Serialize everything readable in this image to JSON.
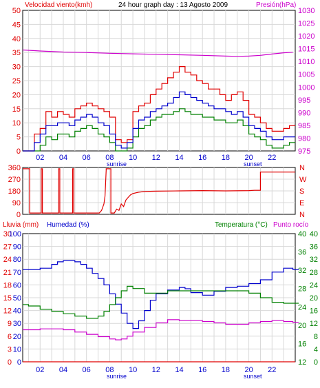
{
  "header": {
    "left_title": "Velocidad viento(kmh)",
    "center_title": "24 hour graph day : 13 Agosto 2009",
    "right_title": "Presión(hPa)"
  },
  "labels": {
    "sunrise": "sunrise",
    "sunset": "sunset"
  },
  "panel3_header": {
    "rain": "Lluvia (mm)",
    "humidity": "Humedad (%)",
    "temperature": "Temperatura (°C)",
    "dewpoint": "Punto rocío"
  },
  "colors": {
    "frame": "#000000",
    "grid": "#d8d8d8",
    "red": "#e00000",
    "blue": "#0000cc",
    "green": "#008000",
    "magenta": "#cc00cc",
    "white": "#ffffff"
  },
  "chart_data": [
    {
      "type": "line",
      "title": "24 hour graph day : 13 Agosto 2009",
      "x_ticks": [
        "02",
        "04",
        "06",
        "08",
        "10",
        "12",
        "14",
        "16",
        "18",
        "20",
        "22"
      ],
      "x_range": [
        0.5,
        24
      ],
      "y_left": {
        "label": "Velocidad viento(kmh)",
        "range": [
          0,
          50
        ],
        "ticks": [
          "0",
          "5",
          "10",
          "15",
          "20",
          "25",
          "30",
          "35",
          "40",
          "45",
          "50"
        ]
      },
      "y_right": {
        "label": "Presión(hPa)",
        "range": [
          975,
          1030
        ],
        "ticks": [
          "975",
          "980",
          "985",
          "990",
          "995",
          "1000",
          "1005",
          "1010",
          "1015",
          "1020",
          "1025",
          "1030"
        ]
      },
      "series": [
        {
          "name": "Velocidad viento(kmh)",
          "color": "#e00000",
          "axis": "left",
          "style": "gusts",
          "x": [
            0.5,
            1,
            1.5,
            2,
            2.5,
            3,
            3.5,
            4,
            4.5,
            5,
            5.5,
            6,
            6.5,
            7,
            7.5,
            8,
            8.5,
            9,
            9.5,
            10,
            10.5,
            11,
            11.5,
            12,
            12.5,
            13,
            13.5,
            14,
            14.5,
            15,
            15.5,
            16,
            16.5,
            17,
            17.5,
            18,
            18.5,
            19,
            19.5,
            20,
            20.5,
            21,
            21.5,
            22,
            22.5,
            23,
            23.5
          ],
          "y": [
            0,
            0,
            6,
            8,
            14,
            12,
            14,
            13,
            12,
            15,
            16,
            17,
            16,
            15,
            14,
            12,
            4,
            3,
            4,
            14,
            16,
            17,
            20,
            22,
            24,
            26,
            28,
            30,
            28,
            27,
            25,
            24,
            22,
            22,
            20,
            18,
            20,
            21,
            18,
            13,
            12,
            10,
            8,
            7,
            7,
            8,
            9
          ]
        },
        {
          "x": [
            0.5,
            1,
            1.5,
            2,
            2.5,
            3,
            3.5,
            4,
            4.5,
            5,
            5.5,
            6,
            6.5,
            7,
            7.5,
            8,
            8.5,
            9,
            9.5,
            10,
            10.5,
            11,
            11.5,
            12,
            12.5,
            13,
            13.5,
            14,
            14.5,
            15,
            15.5,
            16,
            16.5,
            17,
            17.5,
            18,
            18.5,
            19,
            19.5,
            20,
            20.5,
            21,
            21.5,
            22,
            22.5,
            23,
            23.5
          ],
          "y": [
            0,
            0,
            3,
            6,
            9,
            9,
            10,
            10,
            9,
            11,
            12,
            13,
            12,
            10,
            9,
            6,
            2,
            1,
            3,
            8,
            11,
            12,
            14,
            15,
            16,
            17,
            19,
            21,
            20,
            19,
            18,
            17,
            16,
            15,
            15,
            14,
            13,
            14,
            12,
            9,
            8,
            7,
            5,
            4,
            4,
            5,
            5
          ],
          "color": "#0000cc",
          "axis": "left",
          "style": "average"
        },
        {
          "x": [
            0.5,
            1,
            1.5,
            2,
            2.5,
            3,
            3.5,
            4,
            4.5,
            5,
            5.5,
            6,
            6.5,
            7,
            7.5,
            8,
            8.5,
            9,
            9.5,
            10,
            10.5,
            11,
            11.5,
            12,
            12.5,
            13,
            13.5,
            14,
            14.5,
            15,
            15.5,
            16,
            16.5,
            17,
            17.5,
            18,
            18.5,
            19,
            19.5,
            20,
            20.5,
            21,
            21.5,
            22,
            22.5,
            23,
            23.5
          ],
          "y": [
            0,
            0,
            0,
            2,
            5,
            4,
            6,
            6,
            5,
            7,
            8,
            9,
            8,
            6,
            5,
            3,
            0,
            0,
            1,
            5,
            8,
            9,
            11,
            12,
            13,
            13,
            14,
            15,
            14,
            13,
            13,
            12,
            12,
            11,
            11,
            10,
            10,
            11,
            9,
            6,
            5,
            4,
            2,
            1,
            1,
            2,
            3
          ],
          "color": "#008000",
          "axis": "left",
          "style": "lull"
        },
        {
          "name": "Presión(hPa)",
          "color": "#cc00cc",
          "axis": "right",
          "x": [
            0.5,
            2,
            4,
            6,
            8,
            10,
            12,
            14,
            16,
            18,
            19,
            20,
            21,
            22,
            23,
            23.8
          ],
          "y": [
            1014.5,
            1014.1,
            1013.7,
            1013.5,
            1013.2,
            1013.0,
            1012.8,
            1012.6,
            1012.4,
            1012.1,
            1012.0,
            1012.1,
            1012.4,
            1012.9,
            1013.4,
            1013.6
          ]
        }
      ]
    },
    {
      "type": "line",
      "title": "",
      "x_ticks": [],
      "x_range": [
        0.5,
        24
      ],
      "y_left": {
        "label": "",
        "range": [
          0,
          360
        ],
        "ticks": [
          "0",
          "90",
          "180",
          "270",
          "360"
        ]
      },
      "y_right": {
        "label": "",
        "ticks": [
          "N",
          "E",
          "S",
          "W",
          "N"
        ]
      },
      "series": [
        {
          "color": "#e00000",
          "x": [
            0.5,
            1,
            1.1,
            1.1,
            2.1,
            2.1,
            2.2,
            2.2,
            3.6,
            3.6,
            3.7,
            3.7,
            4.8,
            4.8,
            4.9,
            4.9,
            7.1,
            7.3,
            7.5,
            7.6,
            7.7,
            7.7,
            8.1,
            8.1,
            8.4,
            8.6,
            8.8,
            9.0,
            9.2,
            9.4,
            9.6,
            9.8,
            10.0,
            10.5,
            11,
            12,
            14,
            16,
            18,
            20,
            20.5,
            21,
            21,
            24
          ],
          "y": [
            350,
            350,
            350,
            10,
            10,
            350,
            350,
            10,
            10,
            350,
            350,
            10,
            10,
            350,
            350,
            10,
            10,
            30,
            80,
            140,
            340,
            350,
            350,
            10,
            10,
            40,
            30,
            80,
            60,
            110,
            130,
            150,
            160,
            170,
            175,
            178,
            180,
            182,
            180,
            182,
            185,
            185,
            325,
            325
          ]
        }
      ]
    },
    {
      "type": "line",
      "title": "",
      "x_ticks": [
        "02",
        "04",
        "06",
        "08",
        "10",
        "12",
        "14",
        "16",
        "18",
        "20",
        "22"
      ],
      "x_range": [
        0.5,
        24
      ],
      "y_left_outer": {
        "label": "Lluvia (mm)",
        "range": [
          0,
          30
        ],
        "ticks": [
          "0",
          "3",
          "6",
          "9",
          "12",
          "15",
          "18",
          "21",
          "24",
          "27",
          "30"
        ]
      },
      "y_left_inner": {
        "label": "Humedad (%)",
        "range": [
          0,
          100
        ],
        "ticks": [
          "0",
          "10",
          "20",
          "30",
          "40",
          "50",
          "60",
          "70",
          "80",
          "90",
          "100"
        ]
      },
      "y_right_inner": {
        "label": "Temperatura (°C)",
        "range": [
          12,
          40
        ],
        "ticks": [
          "12",
          "16",
          "20",
          "24",
          "28",
          "32",
          "36",
          "40"
        ]
      },
      "y_right_outer": {
        "label": "Punto rocío",
        "range": [
          0,
          40
        ],
        "ticks": [
          "0",
          "4",
          "8",
          "12",
          "16",
          "20",
          "24",
          "28",
          "32",
          "36",
          "40"
        ]
      },
      "series": [
        {
          "name": "Humedad (%)",
          "color": "#0000cc",
          "axis": "left_inner",
          "x": [
            0.5,
            1,
            2,
            3,
            3.5,
            4,
            4.5,
            5,
            5.5,
            6,
            6.5,
            7,
            7.5,
            8,
            8.5,
            9,
            9.5,
            10,
            10.5,
            11,
            11.5,
            12,
            13,
            14,
            14.5,
            15,
            16,
            17,
            18,
            19,
            20,
            21,
            22,
            23,
            23.8
          ],
          "y": [
            72,
            72,
            73,
            76,
            78,
            79,
            79,
            78,
            76,
            73,
            69,
            65,
            60,
            53,
            45,
            38,
            30,
            26,
            32,
            40,
            48,
            53,
            56,
            58,
            57,
            54,
            52,
            55,
            58,
            59,
            61,
            64,
            70,
            73,
            72
          ]
        },
        {
          "name": "Temperatura (°C)",
          "color": "#008000",
          "axis": "right_inner",
          "x": [
            0.5,
            1,
            2,
            3,
            4,
            5,
            6,
            6.5,
            7,
            7.5,
            8,
            8.5,
            9,
            9.5,
            10,
            11,
            12,
            13,
            14,
            15,
            16,
            17,
            18,
            19,
            20,
            21,
            22,
            23,
            23.8
          ],
          "y": [
            24.5,
            24.2,
            23.5,
            23,
            22.5,
            22,
            21.5,
            21.5,
            22,
            23,
            24.5,
            26,
            27.5,
            28.5,
            28,
            27,
            27,
            27.5,
            27.5,
            27.5,
            27.5,
            27.5,
            27.5,
            27.5,
            27,
            26,
            25,
            24.8,
            24.8
          ]
        },
        {
          "name": "Punto rocío",
          "color": "#cc00cc",
          "axis": "right_inner",
          "x": [
            0.5,
            1,
            2,
            3,
            4,
            5,
            6,
            7,
            8,
            8.5,
            9,
            9.5,
            10,
            11,
            12,
            13,
            14,
            15,
            16,
            17,
            18,
            19,
            20,
            21,
            22,
            23,
            23.8
          ],
          "y": [
            19,
            19,
            19.2,
            19.2,
            19,
            18.5,
            18,
            17.5,
            17,
            16.8,
            17,
            17.6,
            18.5,
            19.5,
            20.5,
            21.2,
            21,
            21,
            20.8,
            20.5,
            20.2,
            20.2,
            20.5,
            20.8,
            21,
            20.8,
            20.6
          ]
        },
        {
          "name": "Lluvia (mm)",
          "color": "#e00000",
          "axis": "left_outer",
          "x": [
            0.5,
            24
          ],
          "y": [
            0,
            0
          ]
        }
      ]
    }
  ]
}
